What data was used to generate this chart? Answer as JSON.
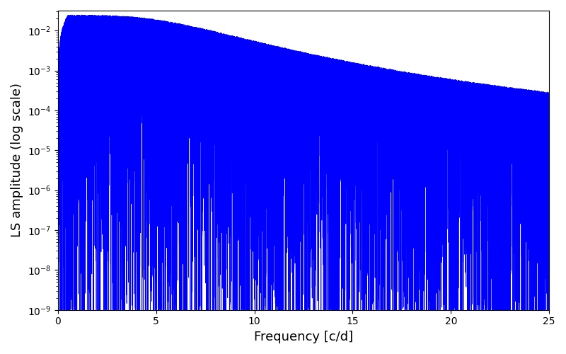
{
  "xlabel": "Frequency [c/d]",
  "ylabel": "LS amplitude (log scale)",
  "xlim": [
    0,
    25
  ],
  "ylim_log": [
    -9,
    -1.5
  ],
  "line_color": "#0000ff",
  "line_width": 0.5,
  "background_color": "#ffffff",
  "figsize": [
    8.0,
    5.0
  ],
  "dpi": 100,
  "num_points": 50000,
  "freq_max": 25.0,
  "seed": 17
}
